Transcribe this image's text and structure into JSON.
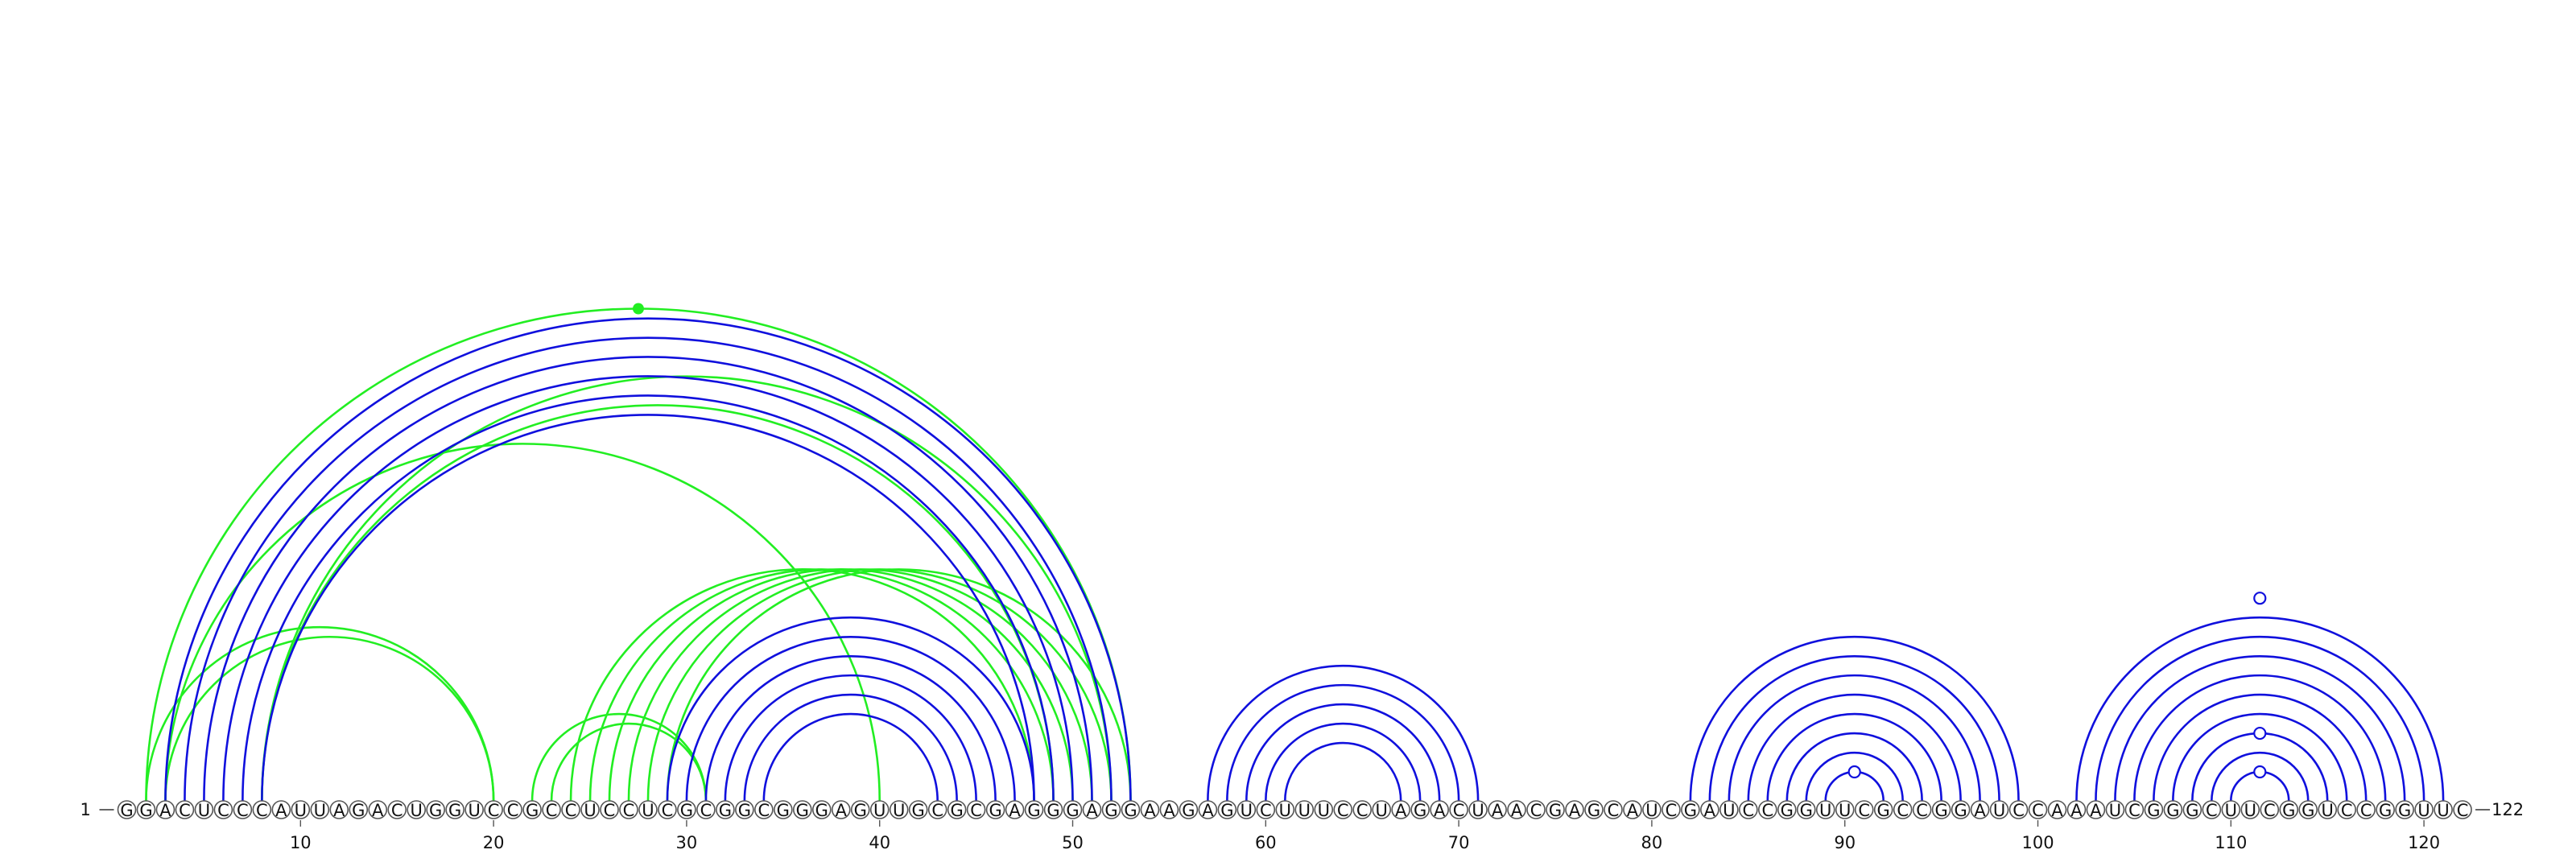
{
  "diagram": {
    "type": "rna-arc-diagram",
    "sequence": "GGACUCCCAUUAGACUGGUCCGCCUCCUCGCGGCGGGAGUUGCGCGAGGGAGGAAGAGUCUUUCCUAGACUAACGAGCAUCGAUCCGGUUCGCCGGAUCCAAAUCGGGCUUCGGUCCGGUUC",
    "length": 122,
    "start_label": "1",
    "end_label": "122",
    "tick_positions": [
      10,
      20,
      30,
      40,
      50,
      60,
      70,
      80,
      90,
      100,
      110,
      120
    ],
    "tick_labels": [
      "10",
      "20",
      "30",
      "40",
      "50",
      "60",
      "70",
      "80",
      "90",
      "100",
      "110",
      "120"
    ],
    "colors": {
      "blue": "#1010dd",
      "green": "#22ee22",
      "circle_stroke": "#555555"
    },
    "blue_pairs": [
      [
        3,
        53
      ],
      [
        4,
        52
      ],
      [
        5,
        51
      ],
      [
        6,
        50
      ],
      [
        7,
        49
      ],
      [
        8,
        48
      ],
      [
        29,
        48
      ],
      [
        30,
        47
      ],
      [
        31,
        46
      ],
      [
        32,
        45
      ],
      [
        33,
        44
      ],
      [
        34,
        43
      ],
      [
        57,
        71
      ],
      [
        58,
        70
      ],
      [
        59,
        69
      ],
      [
        60,
        68
      ],
      [
        61,
        67
      ],
      [
        82,
        99
      ],
      [
        83,
        98
      ],
      [
        84,
        97
      ],
      [
        85,
        96
      ],
      [
        86,
        95
      ],
      [
        87,
        94
      ],
      [
        88,
        93
      ],
      [
        89,
        92
      ],
      [
        102,
        121
      ],
      [
        103,
        120
      ],
      [
        104,
        119
      ],
      [
        105,
        118
      ],
      [
        106,
        117
      ],
      [
        107,
        116
      ],
      [
        108,
        115
      ],
      [
        109,
        114
      ],
      [
        110,
        113
      ]
    ],
    "green_pairs": [
      [
        2,
        20
      ],
      [
        3,
        20
      ],
      [
        2,
        53
      ],
      [
        3,
        40
      ],
      [
        8,
        49
      ],
      [
        8,
        52
      ],
      [
        22,
        31
      ],
      [
        23,
        31
      ],
      [
        24,
        48
      ],
      [
        25,
        49
      ],
      [
        26,
        50
      ],
      [
        27,
        51
      ],
      [
        28,
        52
      ],
      [
        29,
        53
      ]
    ],
    "open_markers": [
      {
        "position": 90.5,
        "pair_span": 3
      },
      {
        "position": 111.5,
        "pair_span": 3
      },
      {
        "position": 111.5,
        "pair_span": 7
      },
      {
        "position": 111.5,
        "pair_span": 21
      }
    ],
    "filled_markers": [
      {
        "position": 27.5,
        "pair_span": 51
      }
    ]
  }
}
